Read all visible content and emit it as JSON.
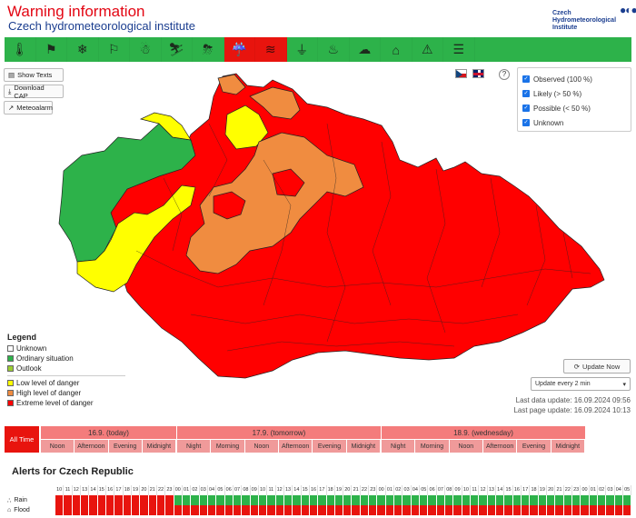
{
  "header": {
    "title": "Warning information",
    "subtitle": "Czech hydrometeorological institute",
    "logo_text": "Czech Hydrometeorological Institute"
  },
  "toolbar": {
    "phenomena": [
      {
        "icon": "thermometer-icon",
        "glyph": "🌡",
        "active": false
      },
      {
        "icon": "wind-flag-icon",
        "glyph": "⚑",
        "active": false
      },
      {
        "icon": "snow-icon",
        "glyph": "❄",
        "active": false
      },
      {
        "icon": "windsock-snow-icon",
        "glyph": "⚐",
        "active": false
      },
      {
        "icon": "blizzard-icon",
        "glyph": "☃",
        "active": false
      },
      {
        "icon": "icy-road-icon",
        "glyph": "⛷",
        "active": false
      },
      {
        "icon": "thunderstorm-icon",
        "glyph": "⛈",
        "active": false
      },
      {
        "icon": "rain-icon",
        "glyph": "☔",
        "active": true
      },
      {
        "icon": "flood-icon",
        "glyph": "≋",
        "active": true
      },
      {
        "icon": "water-level-icon",
        "glyph": "⏚",
        "active": false
      },
      {
        "icon": "fire-icon",
        "glyph": "♨",
        "active": false
      },
      {
        "icon": "smog-icon",
        "glyph": "☁",
        "active": false
      },
      {
        "icon": "factory-icon",
        "glyph": "⌂",
        "active": false
      },
      {
        "icon": "warning-icon",
        "glyph": "⚠",
        "active": false
      },
      {
        "icon": "list-icon",
        "glyph": "☰",
        "active": false
      }
    ]
  },
  "side_buttons": {
    "show_texts": "Show Texts",
    "download_cap": "Download CAP",
    "meteoalarm": "Meteoalarm"
  },
  "filter": {
    "observed": "Observed (100 %)",
    "likely": "Likely (> 50 %)",
    "possible": "Possible (< 50 %)",
    "unknown": "Unknown"
  },
  "legend": {
    "title": "Legend",
    "unknown": "Unknown",
    "ordinary": "Ordinary situation",
    "outlook": "Outlook",
    "low": "Low level of danger",
    "high": "High level of danger",
    "extreme": "Extreme level of danger",
    "colors": {
      "unknown": "#ffffff",
      "ordinary": "#2db24a",
      "outlook": "#9acd32",
      "low": "#ffff00",
      "high": "#f08c40",
      "extreme": "#ff0000"
    }
  },
  "update": {
    "button": "Update Now",
    "interval": "Update every 2 min",
    "last_data": "Last data update: 16.09.2024 09:56",
    "last_page": "Last page update: 16.09.2024 10:13"
  },
  "timeline": {
    "all_time": "All Time",
    "days": [
      {
        "label": "16.9. (today)",
        "parts": [
          "Noon",
          "Afternoon",
          "Evening",
          "Midnight"
        ]
      },
      {
        "label": "17.9. (tomorrow)",
        "parts": [
          "Night",
          "Morning",
          "Noon",
          "Afternoon",
          "Evening",
          "Midnight"
        ]
      },
      {
        "label": "18.9. (wednesday)",
        "parts": [
          "Night",
          "Morning",
          "Noon",
          "Afternoon",
          "Evening",
          "Midnight"
        ]
      }
    ]
  },
  "alerts": {
    "title": "Alerts for Czech Republic",
    "rows": [
      {
        "label": "Rain"
      },
      {
        "label": "Flood"
      }
    ],
    "hours": [
      "10",
      "11",
      "12",
      "13",
      "14",
      "15",
      "16",
      "17",
      "18",
      "19",
      "20",
      "21",
      "22",
      "23",
      "00",
      "01",
      "02",
      "03",
      "04",
      "05",
      "06",
      "07",
      "08",
      "09",
      "10",
      "11",
      "12",
      "13",
      "14",
      "15",
      "16",
      "17",
      "18",
      "19",
      "20",
      "21",
      "22",
      "23",
      "00",
      "01",
      "02",
      "03",
      "04",
      "05",
      "06",
      "07",
      "08",
      "09",
      "10",
      "11",
      "12",
      "13",
      "14",
      "15",
      "16",
      "17",
      "18",
      "19",
      "20",
      "21",
      "22",
      "23",
      "00",
      "01",
      "02",
      "03",
      "04",
      "05"
    ]
  },
  "colors": {
    "green": "#2db24a",
    "red": "#e8140e",
    "accent_red": "#e30613",
    "brand_blue": "#1a3d8f"
  }
}
